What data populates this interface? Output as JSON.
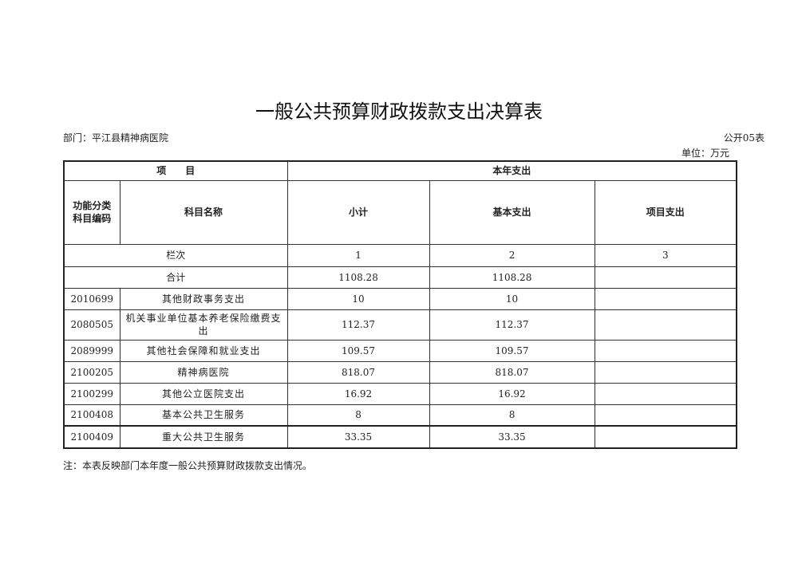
{
  "title": "一般公共预算财政拨款支出决算表",
  "department": "部门：平江县精神病医院",
  "form_no": "公开05表",
  "unit": "单位：万元",
  "header": {
    "item": "项　　目",
    "current_year": "本年支出",
    "code": "功能分类科目编码",
    "name": "科目名称",
    "subtotal": "小计",
    "basic": "基本支出",
    "project": "项目支出"
  },
  "column_row": {
    "label": "栏次",
    "c1": "1",
    "c2": "2",
    "c3": "3"
  },
  "total": {
    "label": "合计",
    "subtotal": "1108.28",
    "basic": "1108.28",
    "project": ""
  },
  "rows": [
    {
      "code": "2010699",
      "name": "其他财政事务支出",
      "subtotal": "10",
      "basic": "10",
      "project": ""
    },
    {
      "code": "2080505",
      "name": "机关事业单位基本养老保险缴费支出",
      "subtotal": "112.37",
      "basic": "112.37",
      "project": ""
    },
    {
      "code": "2089999",
      "name": "其他社会保障和就业支出",
      "subtotal": "109.57",
      "basic": "109.57",
      "project": ""
    },
    {
      "code": "2100205",
      "name": "精神病医院",
      "subtotal": "818.07",
      "basic": "818.07",
      "project": ""
    },
    {
      "code": "2100299",
      "name": "其他公立医院支出",
      "subtotal": "16.92",
      "basic": "16.92",
      "project": ""
    },
    {
      "code": "2100408",
      "name": "基本公共卫生服务",
      "subtotal": "8",
      "basic": "8",
      "project": ""
    },
    {
      "code": "2100409",
      "name": "重大公共卫生服务",
      "subtotal": "33.35",
      "basic": "33.35",
      "project": ""
    }
  ],
  "note": "注：本表反映部门本年度一般公共预算财政拨款支出情况。"
}
